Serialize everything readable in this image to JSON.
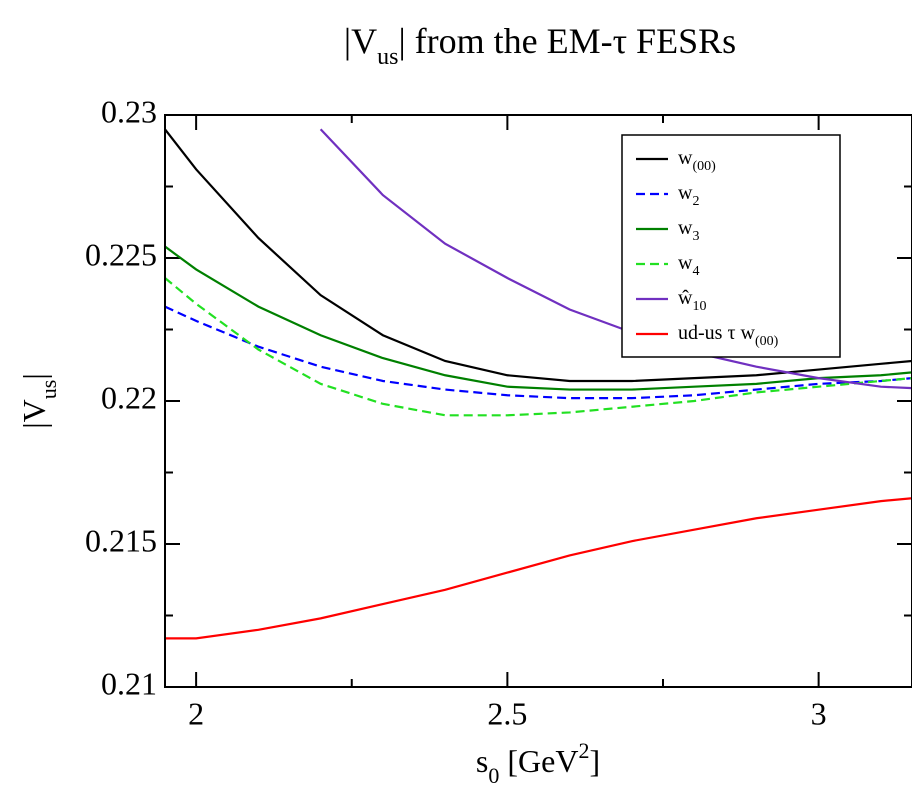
{
  "chart_data": {
    "type": "line",
    "title": [
      "|V",
      "us",
      "| from the EM-τ FESRs"
    ],
    "ylabel": [
      "|V",
      "us",
      "|"
    ],
    "xlabel": [
      "s",
      "0",
      " [GeV",
      "2",
      "]"
    ],
    "x": [
      1.95,
      2.0,
      2.1,
      2.2,
      2.3,
      2.4,
      2.5,
      2.6,
      2.7,
      2.8,
      2.9,
      3.0,
      3.1,
      3.15
    ],
    "series": [
      {
        "name": [
          "w",
          "(00)"
        ],
        "color": "#000000",
        "style": "solid",
        "values": [
          0.2295,
          0.2281,
          0.2257,
          0.2237,
          0.2223,
          0.2214,
          0.2209,
          0.2207,
          0.2207,
          0.2208,
          0.2209,
          0.2211,
          0.2213,
          0.2214
        ]
      },
      {
        "name": [
          "w",
          "2"
        ],
        "color": "#0000ff",
        "style": "dashed",
        "values": [
          0.2233,
          0.2228,
          0.2219,
          0.2212,
          0.2207,
          0.2204,
          0.2202,
          0.2201,
          0.2201,
          0.2202,
          0.2204,
          0.2206,
          0.2207,
          0.2208
        ]
      },
      {
        "name": [
          "w",
          "3"
        ],
        "color": "#008000",
        "style": "solid",
        "values": [
          0.2254,
          0.2246,
          0.2233,
          0.2223,
          0.2215,
          0.2209,
          0.2205,
          0.2204,
          0.2204,
          0.2205,
          0.2206,
          0.2208,
          0.2209,
          0.221
        ]
      },
      {
        "name": [
          "w",
          "4"
        ],
        "color": "#22e022",
        "style": "dashed",
        "values": [
          0.2243,
          0.2234,
          0.2218,
          0.2206,
          0.2199,
          0.2195,
          0.2195,
          0.2196,
          0.2198,
          0.22,
          0.2203,
          0.2205,
          0.2207,
          0.2208
        ]
      },
      {
        "name": [
          "ŵ",
          "10"
        ],
        "color": "#7030c0",
        "style": "solid",
        "values": [
          null,
          null,
          null,
          0.2295,
          0.2272,
          0.2255,
          0.2243,
          0.2232,
          0.2224,
          0.2217,
          0.2212,
          0.2208,
          0.2205,
          0.22045
        ]
      },
      {
        "name": [
          "ud-us τ w",
          "(00)"
        ],
        "color": "#ff0000",
        "style": "solid",
        "values": [
          0.2117,
          0.2117,
          0.212,
          0.2124,
          0.2129,
          0.2134,
          0.214,
          0.2146,
          0.2151,
          0.2155,
          0.2159,
          0.2162,
          0.2165,
          0.2166
        ]
      }
    ],
    "xlim": [
      1.95,
      3.15
    ],
    "xticks": [
      2,
      2.5,
      3
    ],
    "xminor": [
      2.25,
      2.75
    ],
    "ylim": [
      0.21,
      0.23
    ],
    "yticks": [
      0.21,
      0.215,
      0.22,
      0.225,
      0.23
    ],
    "yminor": [
      0.2125,
      0.2175,
      0.2225,
      0.2275
    ],
    "legend": "upper right",
    "grid": false
  }
}
